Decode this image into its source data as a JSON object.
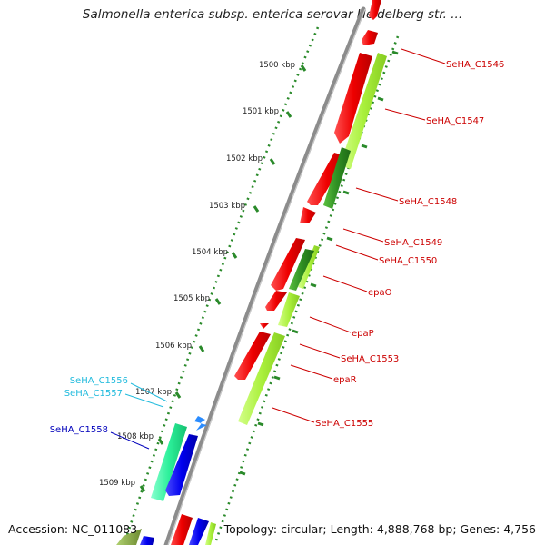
{
  "title": "Salmonella enterica subsp. enterica serovar Heidelberg str. ...",
  "footer": {
    "accession": "Accession: NC_011083",
    "topology": "Topology: circular; Length: 4,888,768 bp; Genes: 4,756"
  },
  "ruler_labels": [
    "1500 kbp",
    "1501 kbp",
    "1502 kbp",
    "1503 kbp",
    "1504 kbp",
    "1505 kbp",
    "1506 kbp",
    "1507 kbp",
    "1508 kbp",
    "1509 kbp"
  ],
  "gene_labels": [
    {
      "text": "SeHA_C1546",
      "strand": "forward"
    },
    {
      "text": "SeHA_C1547",
      "strand": "forward"
    },
    {
      "text": "SeHA_C1548",
      "strand": "forward"
    },
    {
      "text": "SeHA_C1549",
      "strand": "forward"
    },
    {
      "text": "SeHA_C1550",
      "strand": "forward"
    },
    {
      "text": "epaO",
      "strand": "forward"
    },
    {
      "text": "epaP",
      "strand": "forward"
    },
    {
      "text": "SeHA_C1553",
      "strand": "forward"
    },
    {
      "text": "epaR",
      "strand": "forward"
    },
    {
      "text": "SeHA_C1555",
      "strand": "forward"
    },
    {
      "text": "SeHA_C1556",
      "strand": "reverse"
    },
    {
      "text": "SeHA_C1557",
      "strand": "reverse"
    },
    {
      "text": "SeHA_C1558",
      "strand": "reverse"
    }
  ],
  "colors": {
    "backbone": "#8c8c8c",
    "cds_forward": "#ee0000",
    "gene_forward": "#aaf03c",
    "gene_forward_dark": "#3c9a28",
    "cds_reverse": "#0000ee",
    "gene_reverse": "#2cf09a",
    "ruler": "#2a8a2a",
    "label_forward": "#cc0000",
    "label_reverse_light": "#22bbdd",
    "label_reverse_dark": "#0000bb"
  }
}
